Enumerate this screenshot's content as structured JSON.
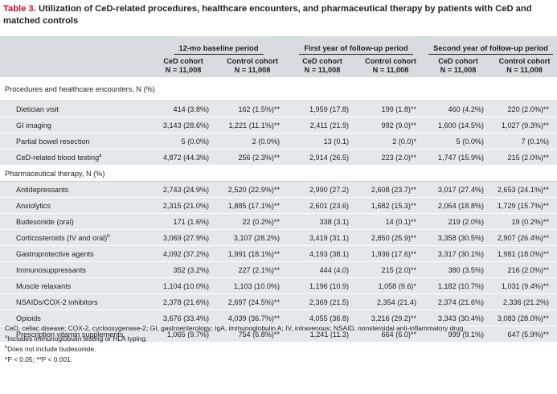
{
  "caption": {
    "label": "Table 3.",
    "text": "Utilization of CeD-related procedures, healthcare encounters, and pharmaceutical therapy by patients with CeD and matched controls"
  },
  "periods": [
    "12-mo baseline period",
    "First year of follow-up period",
    "Second year of follow-up period"
  ],
  "cohorts": [
    {
      "name": "CeD cohort",
      "n": "N = 11,008"
    },
    {
      "name": "Control cohort",
      "n": "N = 11,008"
    }
  ],
  "section1": {
    "title": "Procedures and healthcare encounters, N (%)",
    "rows": [
      {
        "label": "Dietician visit",
        "sup": "",
        "values": [
          "414 (3.8%)",
          "162 (1.5%)**",
          "1,959 (17.8)",
          "199 (1.8)**",
          "460 (4.2%)",
          "220 (2.0%)**"
        ]
      },
      {
        "label": "GI imaging",
        "sup": "",
        "values": [
          "3,143 (28.6%)",
          "1,221 (11.1%)**",
          "2,411 (21.9)",
          "992 (9.0)**",
          "1,600 (14.5%)",
          "1,027 (9.3%)**"
        ]
      },
      {
        "label": "Partial bowel resection",
        "sup": "",
        "values": [
          "5 (0.0%)",
          "2 (0.0%)",
          "13 (0.1)",
          "2 (0.0)*",
          "5 (0.0%)",
          "7 (0.1%)"
        ]
      },
      {
        "label": "CeD-related blood testing",
        "sup": "a",
        "values": [
          "4,872 (44.3%)",
          "256 (2.3%)**",
          "2,914 (26.5)",
          "223 (2.0)**",
          "1,747 (15.9%)",
          "215 (2.0%)**"
        ]
      }
    ]
  },
  "section2": {
    "title": "Pharmaceutical therapy, N (%)",
    "rows": [
      {
        "label": "Antidepressants",
        "sup": "",
        "values": [
          "2,743 (24.9%)",
          "2,520 (22.9%)**",
          "2,990 (27.2)",
          "2,608 (23.7)**",
          "3,017 (27.4%)",
          "2,653 (24.1%)**"
        ]
      },
      {
        "label": "Anxiolytics",
        "sup": "",
        "values": [
          "2,315 (21.0%)",
          "1,885 (17.1%)**",
          "2,601 (23.6)",
          "1,682 (15.3)**",
          "2,064 (18.8%)",
          "1,729 (15.7%)**"
        ]
      },
      {
        "label": "Budesonide (oral)",
        "sup": "",
        "values": [
          "171 (1.6%)",
          "22 (0.2%)**",
          "338 (3.1)",
          "14 (0.1)**",
          "219 (2.0%)",
          "19 (0.2%)**"
        ]
      },
      {
        "label": "Corticosteroids (IV and oral)",
        "sup": "b",
        "values": [
          "3,069 (27.9%)",
          "3,107 (28.2%)",
          "3,419 (31.1)",
          "2,850 (25.9)**",
          "3,358 (30.5%)",
          "2,907 (26.4%)**"
        ]
      },
      {
        "label": "Gastroprotective agents",
        "sup": "",
        "values": [
          "4,092 (37.2%)",
          "1,991 (18.1%)**",
          "4,193 (38.1)",
          "1,936 (17.6)**",
          "3,317 (30.1%)",
          "1,981 (18.0%)**"
        ]
      },
      {
        "label": "Immunosuppressants",
        "sup": "",
        "values": [
          "352 (3.2%)",
          "227 (2.1%)**",
          "444 (4.0)",
          "215 (2.0)**",
          "380 (3.5%)",
          "216 (2.0%)**"
        ]
      },
      {
        "label": "Muscle relaxants",
        "sup": "",
        "values": [
          "1,104 (10.0%)",
          "1,103 (10.0%)",
          "1,196 (10.9)",
          "1,058 (9.6)*",
          "1,182 (10.7%)",
          "1,031 (9.4%)**"
        ]
      },
      {
        "label": "NSAIDs/COX-2 inhibitors",
        "sup": "",
        "values": [
          "2,378 (21.6%)",
          "2,697 (24.5%)**",
          "2,369 (21.5)",
          "2,354 (21.4)",
          "2,374 (21.6%)",
          "2,336 (21.2%)"
        ]
      },
      {
        "label": "Opioids",
        "sup": "",
        "values": [
          "3,676 (33.4%)",
          "4,039 (36.7%)**",
          "4,055 (36.8)",
          "3,216 (29.2)**",
          "3,343 (30.4%)",
          "3,083 (28.0%)**"
        ]
      },
      {
        "label": "Prescription vitamin supplements",
        "sup": "",
        "values": [
          "1,065 (9.7%)",
          "754 (6.8%)**",
          "1,241 (11.3)",
          "664 (6.0)**",
          "999 (9.1%)",
          "647 (5.9%)**"
        ]
      }
    ]
  },
  "footnotes": {
    "abbreviations": "CeD, celiac disease; COX-2, cyclooxygenase-2; GI, gastroenterology; IgA, immunoglobulin A; IV, intravenous; NSAID, nonsteroidal anti-inflammatory drug.",
    "a_mark": "a",
    "a_text": "Includes immunoglobulin testing or HLA typing.",
    "b_mark": "b",
    "b_text": "Does not include budesonide.",
    "sig": "*P < 0.05; **P < 0.001."
  }
}
